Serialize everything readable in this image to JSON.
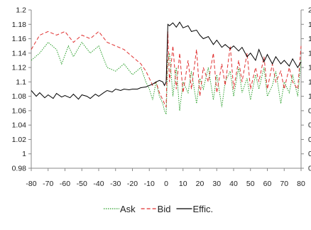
{
  "chart_data": {
    "type": "line",
    "title": "",
    "xlabel": "",
    "ylabel": "",
    "xlim": [
      -80,
      80
    ],
    "ylim": [
      0.98,
      1.2
    ],
    "y2lim": [
      0,
      2
    ],
    "x_ticks": [
      -80,
      -70,
      -60,
      -50,
      -40,
      -30,
      -20,
      -10,
      0,
      10,
      20,
      30,
      40,
      50,
      60,
      70,
      80
    ],
    "y_ticks": [
      0.98,
      1,
      1.02,
      1.04,
      1.06,
      1.08,
      1.1,
      1.12,
      1.14,
      1.16,
      1.18,
      1.2
    ],
    "y_tick_labels": [
      "0.98",
      "1",
      "1.02",
      "1.04",
      "1.06",
      "1.08",
      "1.1",
      "1.12",
      "1.14",
      "1.16",
      "1.18",
      "1.2"
    ],
    "y2_tick_labels_visible": [
      "0",
      "0",
      "0",
      "0",
      "0",
      "1",
      "1",
      "1",
      "1",
      "1",
      "1",
      "2"
    ],
    "legend_position": "bottom",
    "grid": false,
    "series": [
      {
        "name": "Ask",
        "color": "#2ca02c",
        "style": "dotted",
        "axis": "left",
        "x": [
          -80,
          -75,
          -70,
          -65,
          -62,
          -58,
          -55,
          -50,
          -45,
          -40,
          -35,
          -30,
          -25,
          -20,
          -15,
          -12,
          -10,
          -8,
          -6,
          -4,
          -2,
          -1,
          0,
          1,
          2,
          4,
          6,
          8,
          10,
          13,
          15,
          18,
          20,
          22,
          25,
          28,
          30,
          33,
          35,
          38,
          40,
          43,
          45,
          48,
          50,
          53,
          55,
          58,
          60,
          63,
          65,
          68,
          70,
          73,
          75,
          78,
          80
        ],
        "y": [
          1.13,
          1.14,
          1.155,
          1.145,
          1.125,
          1.15,
          1.135,
          1.155,
          1.14,
          1.15,
          1.12,
          1.115,
          1.125,
          1.11,
          1.12,
          1.1,
          1.09,
          1.075,
          1.1,
          1.08,
          1.07,
          1.06,
          1.055,
          1.13,
          1.14,
          1.08,
          1.12,
          1.06,
          1.1,
          1.085,
          1.115,
          1.07,
          1.105,
          1.09,
          1.12,
          1.075,
          1.11,
          1.065,
          1.1,
          1.115,
          1.08,
          1.12,
          1.085,
          1.105,
          1.075,
          1.11,
          1.09,
          1.12,
          1.08,
          1.095,
          1.115,
          1.07,
          1.1,
          1.085,
          1.11,
          1.08,
          1.13
        ]
      },
      {
        "name": "Bid",
        "color": "#e03030",
        "style": "dashed",
        "axis": "left",
        "x": [
          -80,
          -75,
          -70,
          -65,
          -60,
          -55,
          -50,
          -45,
          -40,
          -35,
          -30,
          -25,
          -20,
          -15,
          -12,
          -10,
          -8,
          -6,
          -4,
          -2,
          -1,
          0,
          1,
          2,
          4,
          6,
          8,
          10,
          13,
          15,
          18,
          20,
          22,
          25,
          28,
          30,
          33,
          35,
          38,
          40,
          43,
          45,
          48,
          50,
          53,
          55,
          58,
          60,
          63,
          65,
          68,
          70,
          73,
          75,
          78,
          80
        ],
        "y": [
          1.145,
          1.165,
          1.17,
          1.165,
          1.17,
          1.155,
          1.165,
          1.16,
          1.17,
          1.155,
          1.15,
          1.145,
          1.135,
          1.125,
          1.115,
          1.105,
          1.095,
          1.1,
          1.085,
          1.075,
          1.07,
          1.065,
          1.17,
          1.1,
          1.15,
          1.09,
          1.14,
          1.085,
          1.13,
          1.09,
          1.145,
          1.08,
          1.12,
          1.1,
          1.14,
          1.085,
          1.125,
          1.095,
          1.15,
          1.09,
          1.13,
          1.1,
          1.14,
          1.09,
          1.12,
          1.1,
          1.135,
          1.09,
          1.125,
          1.1,
          1.115,
          1.09,
          1.12,
          1.1,
          1.09,
          1.15
        ]
      },
      {
        "name": "Effic.",
        "color": "#000000",
        "style": "solid",
        "axis": "left",
        "x": [
          -80,
          -77,
          -75,
          -72,
          -70,
          -67,
          -65,
          -62,
          -60,
          -57,
          -55,
          -52,
          -50,
          -47,
          -45,
          -42,
          -40,
          -37,
          -35,
          -32,
          -30,
          -27,
          -25,
          -22,
          -20,
          -17,
          -15,
          -12,
          -10,
          -8,
          -6,
          -4,
          -2,
          -1,
          0,
          1,
          2,
          4,
          6,
          8,
          10,
          13,
          15,
          18,
          20,
          22,
          25,
          28,
          30,
          33,
          35,
          38,
          40,
          43,
          45,
          48,
          50,
          53,
          55,
          58,
          60,
          63,
          65,
          68,
          70,
          73,
          75,
          78,
          80
        ],
        "y": [
          1.088,
          1.08,
          1.085,
          1.078,
          1.082,
          1.077,
          1.084,
          1.079,
          1.081,
          1.078,
          1.083,
          1.076,
          1.082,
          1.08,
          1.077,
          1.083,
          1.08,
          1.085,
          1.088,
          1.086,
          1.09,
          1.088,
          1.09,
          1.089,
          1.09,
          1.09,
          1.092,
          1.093,
          1.095,
          1.097,
          1.1,
          1.102,
          1.1,
          1.095,
          1.1,
          1.18,
          1.178,
          1.182,
          1.176,
          1.183,
          1.175,
          1.178,
          1.17,
          1.172,
          1.165,
          1.16,
          1.163,
          1.152,
          1.158,
          1.148,
          1.152,
          1.146,
          1.15,
          1.143,
          1.148,
          1.135,
          1.14,
          1.13,
          1.145,
          1.128,
          1.138,
          1.125,
          1.135,
          1.125,
          1.13,
          1.122,
          1.132,
          1.12,
          1.128
        ]
      }
    ]
  }
}
